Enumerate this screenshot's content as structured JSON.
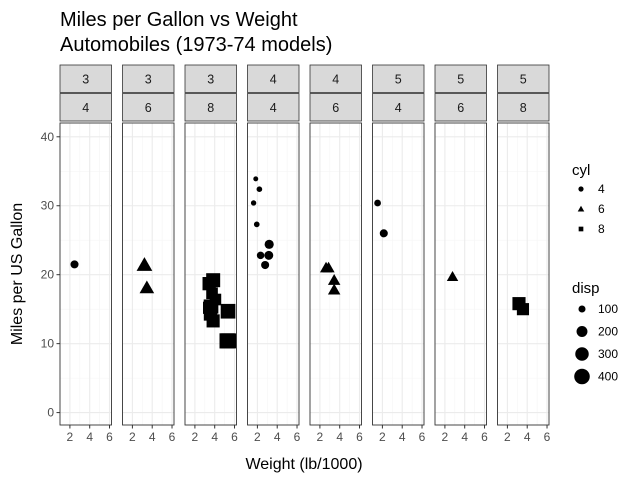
{
  "chart_data": {
    "type": "scatter",
    "title": "Miles per Gallon vs Weight",
    "subtitle": "Automobiles (1973-74 models)",
    "xlabel": "Weight (lb/1000)",
    "ylabel": "Miles per US Gallon",
    "xlim": [
      1,
      6.2
    ],
    "ylim": [
      -1.8,
      42
    ],
    "x_ticks": [
      2,
      4,
      6
    ],
    "y_ticks": [
      0,
      10,
      20,
      30,
      40
    ],
    "grid": true,
    "legend_position": "right",
    "facets": [
      {
        "top": "3",
        "bottom": "4",
        "points": [
          {
            "x": 2.465,
            "y": 21.5,
            "disp": 120.1
          }
        ]
      },
      {
        "top": "3",
        "bottom": "6",
        "points": [
          {
            "x": 3.215,
            "y": 21.4,
            "disp": 258
          },
          {
            "x": 3.46,
            "y": 18.1,
            "disp": 225
          }
        ]
      },
      {
        "top": "3",
        "bottom": "8",
        "points": [
          {
            "x": 3.44,
            "y": 18.7,
            "disp": 360
          },
          {
            "x": 3.57,
            "y": 14.3,
            "disp": 360
          },
          {
            "x": 4.07,
            "y": 16.4,
            "disp": 275.8
          },
          {
            "x": 3.73,
            "y": 17.3,
            "disp": 275.8
          },
          {
            "x": 3.78,
            "y": 15.2,
            "disp": 275.8
          },
          {
            "x": 5.25,
            "y": 10.4,
            "disp": 472
          },
          {
            "x": 5.424,
            "y": 10.4,
            "disp": 460
          },
          {
            "x": 5.345,
            "y": 14.7,
            "disp": 440
          },
          {
            "x": 3.52,
            "y": 15.5,
            "disp": 318
          },
          {
            "x": 3.435,
            "y": 15.2,
            "disp": 304
          },
          {
            "x": 3.84,
            "y": 13.3,
            "disp": 350
          },
          {
            "x": 3.845,
            "y": 19.2,
            "disp": 400
          }
        ]
      },
      {
        "top": "4",
        "bottom": "4",
        "points": [
          {
            "x": 3.19,
            "y": 24.4,
            "disp": 146.7
          },
          {
            "x": 3.15,
            "y": 22.8,
            "disp": 140.8
          },
          {
            "x": 2.2,
            "y": 32.4,
            "disp": 78.7
          },
          {
            "x": 1.615,
            "y": 30.4,
            "disp": 75.7
          },
          {
            "x": 1.835,
            "y": 33.9,
            "disp": 71.1
          },
          {
            "x": 1.935,
            "y": 27.3,
            "disp": 79
          },
          {
            "x": 2.32,
            "y": 22.8,
            "disp": 108
          },
          {
            "x": 2.78,
            "y": 21.4,
            "disp": 121
          }
        ]
      },
      {
        "top": "4",
        "bottom": "6",
        "points": [
          {
            "x": 2.62,
            "y": 21.0,
            "disp": 160
          },
          {
            "x": 2.875,
            "y": 21.0,
            "disp": 160
          },
          {
            "x": 3.44,
            "y": 19.2,
            "disp": 167.6
          },
          {
            "x": 3.44,
            "y": 17.8,
            "disp": 167.6
          }
        ]
      },
      {
        "top": "5",
        "bottom": "4",
        "points": [
          {
            "x": 2.14,
            "y": 26.0,
            "disp": 120.3
          },
          {
            "x": 1.513,
            "y": 30.4,
            "disp": 95.1
          }
        ]
      },
      {
        "top": "5",
        "bottom": "6",
        "points": [
          {
            "x": 2.77,
            "y": 19.7,
            "disp": 145
          }
        ]
      },
      {
        "top": "5",
        "bottom": "8",
        "points": [
          {
            "x": 3.17,
            "y": 15.8,
            "disp": 351
          },
          {
            "x": 3.57,
            "y": 15.0,
            "disp": 301
          }
        ]
      }
    ],
    "legend": {
      "cyl": {
        "title": "cyl",
        "entries": [
          {
            "label": "4",
            "shape": "circle"
          },
          {
            "label": "6",
            "shape": "triangle"
          },
          {
            "label": "8",
            "shape": "square"
          }
        ]
      },
      "disp": {
        "title": "disp",
        "entries": [
          {
            "label": "100",
            "value": 100
          },
          {
            "label": "200",
            "value": 200
          },
          {
            "label": "300",
            "value": 300
          },
          {
            "label": "400",
            "value": 400
          }
        ]
      }
    },
    "colors": {
      "point": "#000000",
      "panel_bg": "#ffffff",
      "panel_border": "#333333",
      "strip_bg": "#d9d9d9",
      "strip_border": "#333333",
      "grid_major": "#ebebeb",
      "grid_minor": "#f5f5f5",
      "tick": "#333333"
    }
  }
}
